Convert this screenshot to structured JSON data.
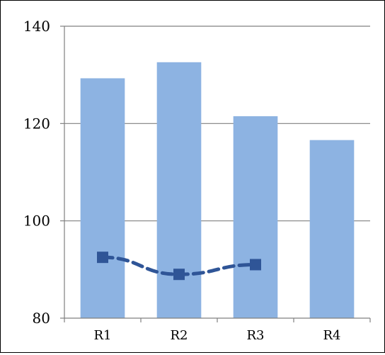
{
  "header": {
    "title_left": "",
    "title_right": ""
  },
  "colors": {
    "bar": "#8db3e2",
    "line": "#2f5597",
    "grid": "#808080",
    "axis": "#808080"
  },
  "chart_data": {
    "type": "bar",
    "categories": [
      "R1",
      "R2",
      "R3",
      "R4"
    ],
    "series": [
      {
        "type": "bar",
        "values": [
          129.3,
          132.6,
          121.5,
          116.6
        ]
      },
      {
        "type": "line",
        "style": "dashed",
        "marker": "square",
        "values": [
          92.5,
          89.0,
          91.0,
          null
        ]
      }
    ],
    "ylim": [
      80,
      140
    ],
    "yticks": [
      80,
      100,
      120,
      140
    ],
    "grid": true,
    "legend": "none"
  }
}
